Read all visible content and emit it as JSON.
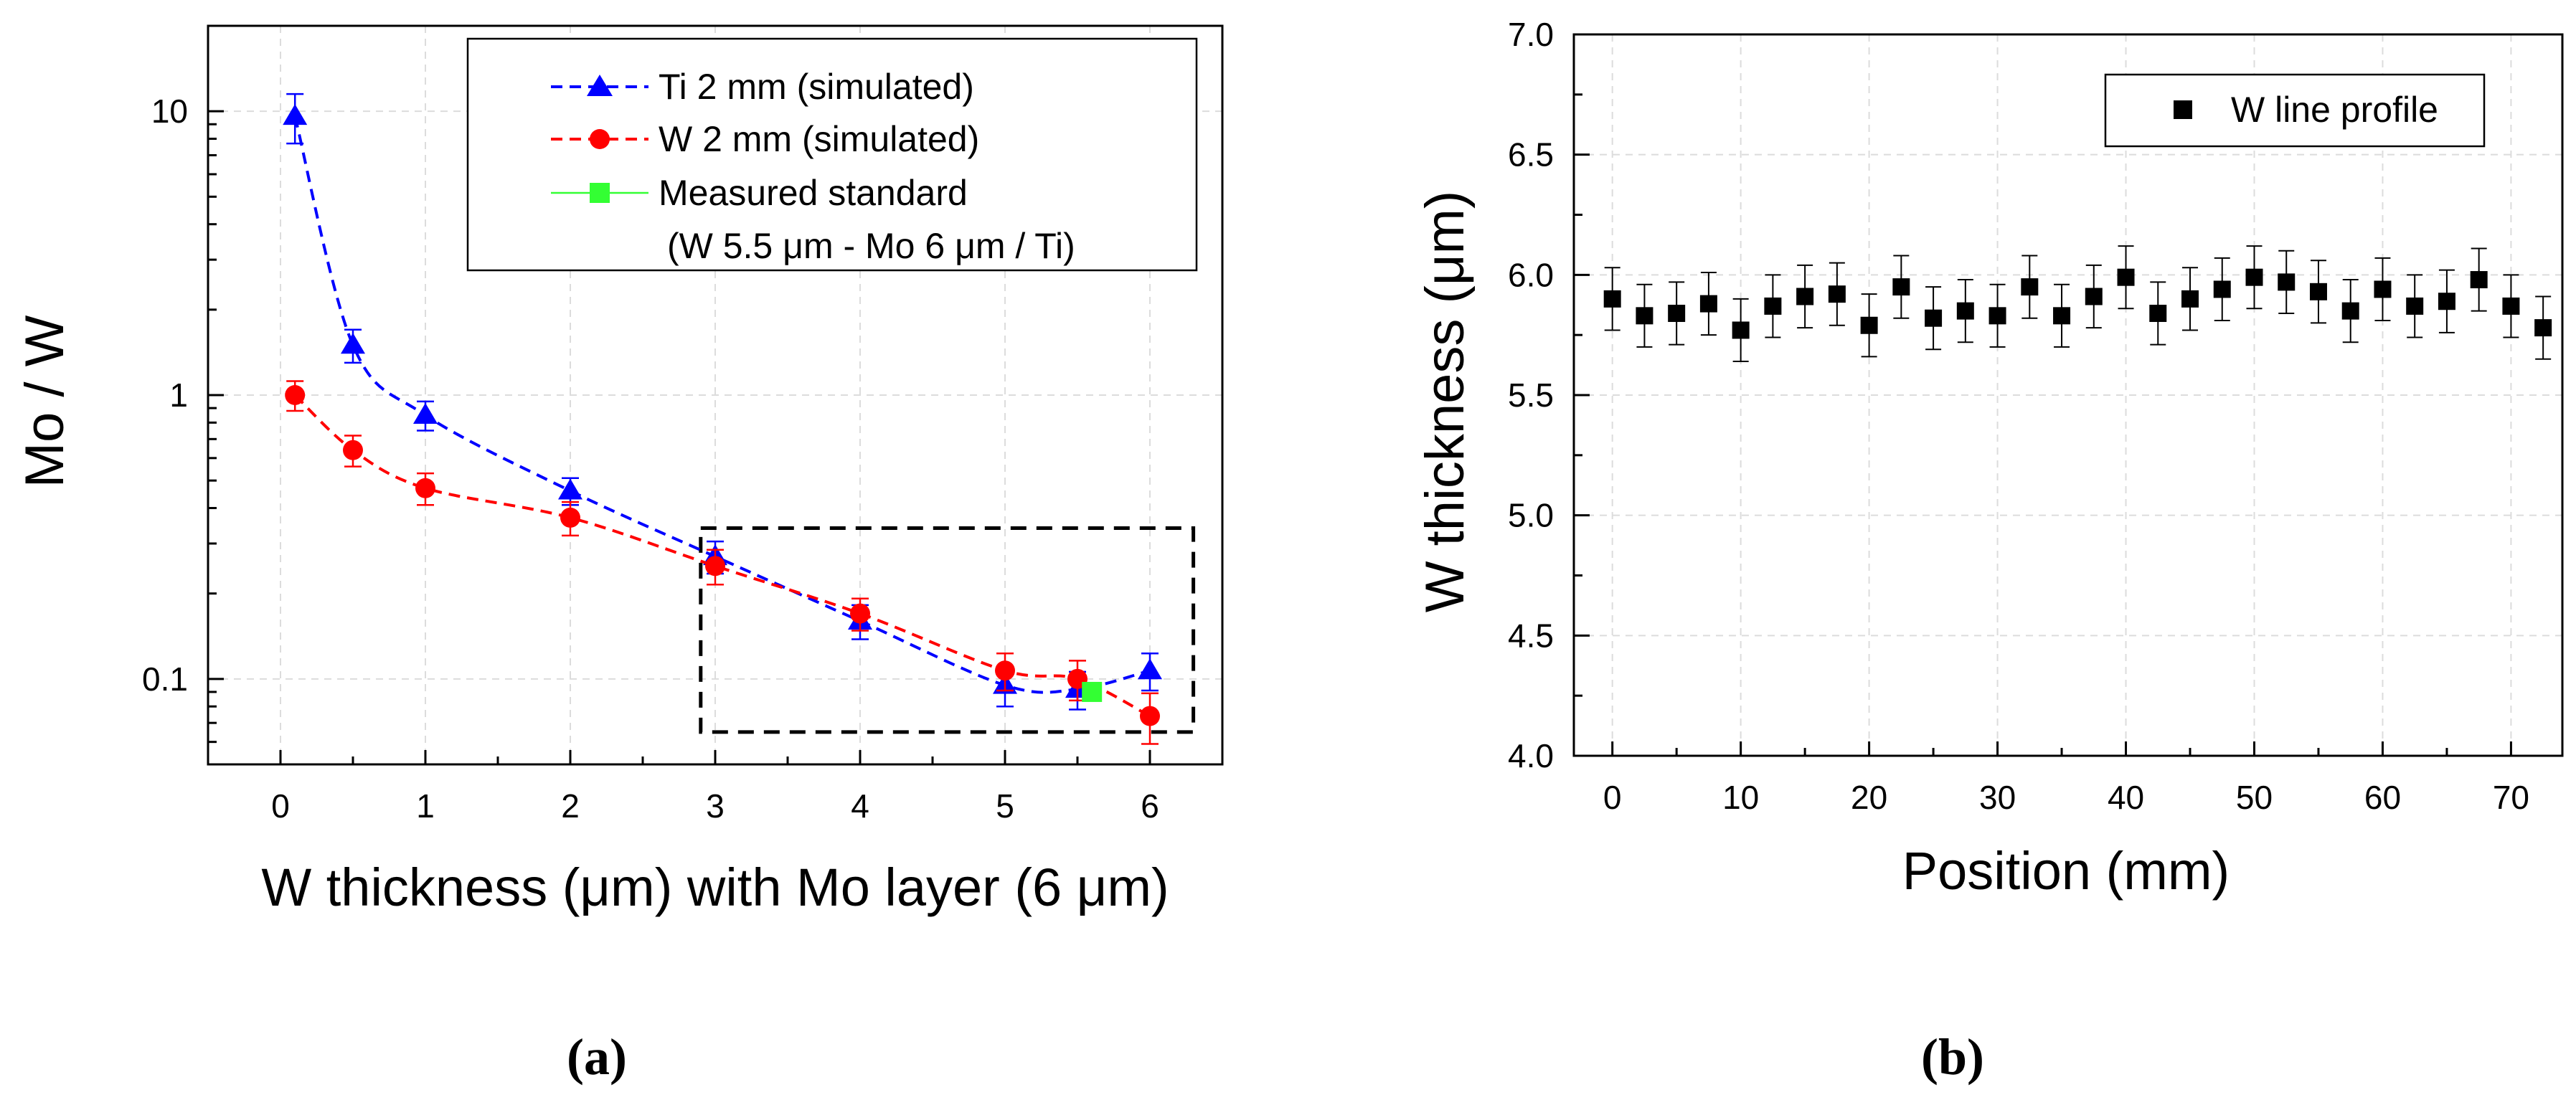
{
  "chart_data": [
    {
      "panel_label": "(a)",
      "type": "line",
      "xlabel": "W thickness  (μm) with Mo layer (6 μm)",
      "ylabel": "Mo / W",
      "xlim": [
        -0.5,
        6.5
      ],
      "ylim": [
        0.05,
        20
      ],
      "yscale": "log",
      "x_ticks": [
        "0",
        "1",
        "2",
        "3",
        "4",
        "5",
        "6"
      ],
      "y_ticks": [
        "0.1",
        "1",
        "10"
      ],
      "grid": true,
      "legend_position": "top-right",
      "series": [
        {
          "name": "Ti 2 mm (simulated)",
          "color": "#0000ff",
          "marker": "triangle",
          "line": "dashed",
          "x": [
            0.1,
            0.5,
            1,
            2,
            3,
            4,
            5,
            5.5,
            6
          ],
          "y": [
            9.6,
            1.5,
            0.85,
            0.46,
            0.27,
            0.16,
            0.095,
            0.092,
            0.107
          ],
          "y_err_low": [
            1.9,
            0.2,
            0.1,
            0.05,
            0.035,
            0.022,
            0.015,
            0.014,
            0.016
          ],
          "y_err_high": [
            1.9,
            0.2,
            0.1,
            0.05,
            0.035,
            0.022,
            0.015,
            0.014,
            0.016
          ]
        },
        {
          "name": "W 2 mm (simulated)",
          "color": "#ff0000",
          "marker": "circle",
          "line": "dashed",
          "x": [
            0.1,
            0.5,
            1,
            2,
            3,
            4,
            5,
            5.5,
            6
          ],
          "y": [
            1.0,
            0.64,
            0.47,
            0.37,
            0.25,
            0.17,
            0.107,
            0.1,
            0.074
          ],
          "y_err_low": [
            0.12,
            0.08,
            0.06,
            0.05,
            0.035,
            0.022,
            0.016,
            0.016,
            0.015
          ],
          "y_err_high": [
            0.12,
            0.08,
            0.06,
            0.05,
            0.035,
            0.022,
            0.016,
            0.016,
            0.015
          ]
        },
        {
          "name": "Measured standard",
          "name_line2": "(W 5.5 μm - Mo 6 μm / Ti)",
          "color": "#33ff33",
          "marker": "square",
          "line": "solid",
          "x": [
            5.6
          ],
          "y": [
            0.09
          ]
        }
      ],
      "annotation": {
        "type": "dashed-rectangle",
        "x_range": [
          2.9,
          6.3
        ],
        "y_range": [
          0.065,
          0.34
        ]
      }
    },
    {
      "panel_label": "(b)",
      "type": "scatter",
      "xlabel": "Position (mm)",
      "ylabel": "W thickness (μm)",
      "xlim": [
        -3,
        74
      ],
      "ylim": [
        4.0,
        7.0
      ],
      "x_ticks": [
        "0",
        "10",
        "20",
        "30",
        "40",
        "50",
        "60",
        "70"
      ],
      "y_ticks": [
        "4.0",
        "4.5",
        "5.0",
        "5.5",
        "6.0",
        "6.5",
        "7.0"
      ],
      "grid": true,
      "legend_position": "top-right",
      "series": [
        {
          "name": "W line profile",
          "color": "#000000",
          "marker": "square",
          "x": [
            0,
            2.5,
            5,
            7.5,
            10,
            12.5,
            15,
            17.5,
            20,
            22.5,
            25,
            27.5,
            30,
            32.5,
            35,
            37.5,
            40,
            42.5,
            45,
            47.5,
            50,
            52.5,
            55,
            57.5,
            60,
            62.5,
            65,
            67.5,
            70,
            72.5
          ],
          "y": [
            5.9,
            5.83,
            5.84,
            5.88,
            5.77,
            5.87,
            5.91,
            5.92,
            5.79,
            5.95,
            5.82,
            5.85,
            5.83,
            5.95,
            5.83,
            5.91,
            5.99,
            5.84,
            5.9,
            5.94,
            5.99,
            5.97,
            5.93,
            5.85,
            5.94,
            5.87,
            5.89,
            5.98,
            5.87,
            5.78
          ],
          "y_err": 0.13
        }
      ]
    }
  ]
}
